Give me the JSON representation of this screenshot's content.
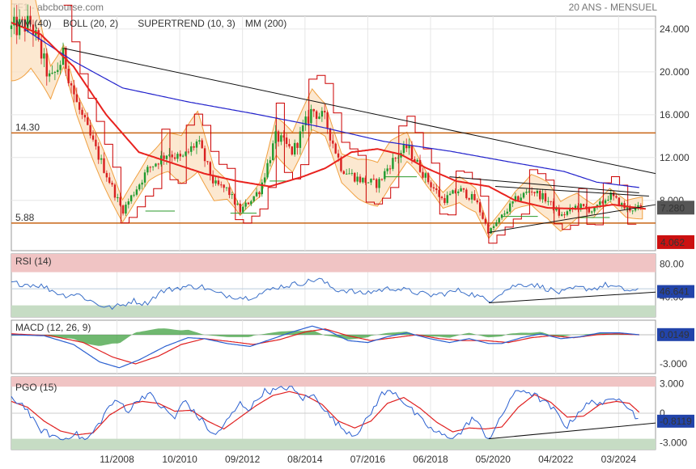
{
  "header": {
    "left": "TF1 - abcbourse.com",
    "right": "20 ANS - MENSUEL"
  },
  "colors": {
    "mm40": "#e8221e",
    "boll": "#f0a040",
    "boll_fill": "#fbe0c0",
    "supertrend": "#cc0000",
    "supertrend_green": "#2a9a2a",
    "mm200": "#2222cc",
    "candle_up": "#1f9a2f",
    "candle_down": "#d82020",
    "hline": "#c86414",
    "rsi": "#3a6fc8",
    "macd_main": "#2a5fd0",
    "macd_signal": "#e02020",
    "macd_hist": "#40a040",
    "pgo_main": "#2a5fd0",
    "pgo_signal": "#e02020",
    "zone_red": "#f0c4c4",
    "zone_green": "#c6dcc4"
  },
  "chart_data": [
    {
      "type": "candlestick",
      "panel": "price",
      "legend": [
        {
          "label": "MM (40)",
          "color": "#e8221e"
        },
        {
          "label": "BOLL (20, 2)",
          "color": "#f0a040"
        },
        {
          "label": "SUPERTREND (10, 3)",
          "color": "#cc0000"
        },
        {
          "label": "MM (200)",
          "color": "#2222cc"
        }
      ],
      "y_ticks": [
        "24.000",
        "20.000",
        "16.000",
        "12.000",
        "8.000"
      ],
      "ylim": [
        3.3,
        25.2
      ],
      "hlines": [
        {
          "value": 14.3,
          "label": "14.30"
        },
        {
          "value": 5.88,
          "label": "5.88"
        }
      ],
      "last_price": "7.280",
      "marker_value": "4.062",
      "x_ticks": [
        "11/2008",
        "10/2010",
        "09/2012",
        "08/2014",
        "07/2016",
        "06/2018",
        "05/2020",
        "04/2022",
        "03/2024"
      ],
      "x_tick_years": [
        2008.83,
        2010.75,
        2012.67,
        2014.58,
        2016.5,
        2018.42,
        2020.33,
        2022.25,
        2024.17
      ],
      "xlim": [
        2005.6,
        2025.3
      ],
      "close_anchors": [
        [
          2005.6,
          24.0
        ],
        [
          2006.2,
          24.5
        ],
        [
          2006.8,
          19.0
        ],
        [
          2007.2,
          21.5
        ],
        [
          2007.6,
          17.0
        ],
        [
          2008.0,
          14.0
        ],
        [
          2008.5,
          10.5
        ],
        [
          2009.0,
          7.0
        ],
        [
          2009.3,
          8.5
        ],
        [
          2009.8,
          11.0
        ],
        [
          2010.4,
          12.5
        ],
        [
          2010.8,
          11.8
        ],
        [
          2011.3,
          13.5
        ],
        [
          2011.8,
          9.5
        ],
        [
          2012.2,
          9.0
        ],
        [
          2012.6,
          7.0
        ],
        [
          2013.2,
          9.0
        ],
        [
          2013.7,
          14.0
        ],
        [
          2014.2,
          12.5
        ],
        [
          2014.8,
          16.5
        ],
        [
          2015.2,
          15.5
        ],
        [
          2015.7,
          11.0
        ],
        [
          2016.2,
          10.0
        ],
        [
          2016.8,
          9.5
        ],
        [
          2017.2,
          11.5
        ],
        [
          2017.7,
          13.0
        ],
        [
          2018.3,
          10.0
        ],
        [
          2018.8,
          8.0
        ],
        [
          2019.3,
          9.0
        ],
        [
          2019.8,
          8.0
        ],
        [
          2020.2,
          5.0
        ],
        [
          2020.6,
          6.5
        ],
        [
          2021.0,
          8.0
        ],
        [
          2021.5,
          9.0
        ],
        [
          2022.0,
          8.0
        ],
        [
          2022.4,
          6.5
        ],
        [
          2022.9,
          7.5
        ],
        [
          2023.4,
          7.0
        ],
        [
          2023.9,
          8.5
        ],
        [
          2024.4,
          7.2
        ],
        [
          2025.0,
          7.3
        ]
      ],
      "mm40_anchors": [
        [
          2005.6,
          24.6
        ],
        [
          2006.5,
          23.5
        ],
        [
          2007.5,
          20.5
        ],
        [
          2008.5,
          16.0
        ],
        [
          2009.5,
          12.5
        ],
        [
          2010.5,
          11.5
        ],
        [
          2011.5,
          10.5
        ],
        [
          2012.5,
          9.8
        ],
        [
          2013.5,
          9.3
        ],
        [
          2014.5,
          10.2
        ],
        [
          2015.2,
          11.0
        ],
        [
          2016.0,
          12.5
        ],
        [
          2016.8,
          12.8
        ],
        [
          2017.5,
          12.3
        ],
        [
          2018.3,
          11.0
        ],
        [
          2019.2,
          9.8
        ],
        [
          2020.2,
          9.3
        ],
        [
          2021.0,
          8.0
        ],
        [
          2022.0,
          7.3
        ],
        [
          2023.0,
          7.2
        ],
        [
          2024.0,
          7.6
        ],
        [
          2025.0,
          7.2
        ]
      ],
      "mm200_anchors": [
        [
          2006.0,
          24.0
        ],
        [
          2007.5,
          21.0
        ],
        [
          2009.0,
          18.5
        ],
        [
          2011.0,
          17.2
        ],
        [
          2013.0,
          16.1
        ],
        [
          2015.0,
          14.9
        ],
        [
          2017.0,
          13.5
        ],
        [
          2019.0,
          12.6
        ],
        [
          2021.0,
          11.5
        ],
        [
          2022.5,
          10.7
        ],
        [
          2023.5,
          9.7
        ],
        [
          2024.8,
          9.2
        ]
      ],
      "trendlines": [
        {
          "x": [
            2007.2,
            2025.3
          ],
          "y": [
            22.2,
            10.5
          ]
        },
        {
          "x": [
            2019.0,
            2024.8
          ],
          "y": [
            10.2,
            8.7
          ]
        },
        {
          "x": [
            2020.2,
            2025.3
          ],
          "y": [
            5.0,
            7.6
          ]
        },
        {
          "x": [
            2020.4,
            2025.1
          ],
          "y": [
            9.3,
            8.4
          ]
        }
      ]
    },
    {
      "type": "line",
      "panel": "rsi",
      "legend": [
        {
          "label": "RSI (14)",
          "color": "#3a6fc8"
        }
      ],
      "y_ticks": [
        "80.00",
        "40.00"
      ],
      "ylim": [
        16,
        92
      ],
      "zones": {
        "upper": 70,
        "lower": 30
      },
      "last_value": "46.641",
      "series_anchors": [
        [
          2005.6,
          57
        ],
        [
          2006.5,
          54
        ],
        [
          2007.2,
          42
        ],
        [
          2007.6,
          44
        ],
        [
          2008.2,
          32
        ],
        [
          2008.6,
          27
        ],
        [
          2009.0,
          30
        ],
        [
          2009.3,
          36
        ],
        [
          2009.7,
          32
        ],
        [
          2010.2,
          47
        ],
        [
          2010.8,
          52
        ],
        [
          2011.4,
          53
        ],
        [
          2011.9,
          44
        ],
        [
          2012.4,
          41
        ],
        [
          2012.8,
          39
        ],
        [
          2013.3,
          45
        ],
        [
          2013.7,
          52
        ],
        [
          2014.2,
          55
        ],
        [
          2014.6,
          58
        ],
        [
          2015.0,
          62
        ],
        [
          2015.5,
          49
        ],
        [
          2015.9,
          48
        ],
        [
          2016.3,
          44
        ],
        [
          2016.8,
          48
        ],
        [
          2017.3,
          51
        ],
        [
          2017.8,
          47
        ],
        [
          2018.4,
          42
        ],
        [
          2018.8,
          44
        ],
        [
          2019.3,
          48
        ],
        [
          2019.8,
          42
        ],
        [
          2020.2,
          35
        ],
        [
          2020.5,
          44
        ],
        [
          2021.0,
          54
        ],
        [
          2021.5,
          56
        ],
        [
          2022.0,
          50
        ],
        [
          2022.4,
          45
        ],
        [
          2022.9,
          51
        ],
        [
          2023.4,
          50
        ],
        [
          2023.8,
          55
        ],
        [
          2024.3,
          49
        ],
        [
          2024.8,
          47
        ]
      ],
      "trendline": {
        "x": [
          2020.2,
          2025.3
        ],
        "y": [
          33,
          46
        ]
      }
    },
    {
      "type": "line",
      "panel": "macd",
      "legend": [
        {
          "label": "MACD (12, 26, 9)",
          "color": "#2a5fd0"
        }
      ],
      "y_ticks": [
        "-3.000"
      ],
      "ylim": [
        -4.0,
        1.5
      ],
      "last_value": "0.0149",
      "main_anchors": [
        [
          2005.6,
          0.0
        ],
        [
          2006.6,
          -0.1
        ],
        [
          2007.5,
          -1.0
        ],
        [
          2008.3,
          -2.8
        ],
        [
          2008.9,
          -3.4
        ],
        [
          2009.5,
          -2.6
        ],
        [
          2010.3,
          -1.2
        ],
        [
          2011.0,
          -0.3
        ],
        [
          2011.5,
          -0.4
        ],
        [
          2012.2,
          -0.9
        ],
        [
          2012.9,
          -1.2
        ],
        [
          2013.6,
          -0.4
        ],
        [
          2014.2,
          0.3
        ],
        [
          2014.8,
          0.9
        ],
        [
          2015.3,
          0.4
        ],
        [
          2015.9,
          -0.6
        ],
        [
          2016.5,
          -0.8
        ],
        [
          2017.1,
          -0.2
        ],
        [
          2017.7,
          0.2
        ],
        [
          2018.4,
          -0.4
        ],
        [
          2019.0,
          -0.8
        ],
        [
          2019.6,
          -0.4
        ],
        [
          2020.2,
          -0.9
        ],
        [
          2020.6,
          -0.9
        ],
        [
          2021.2,
          -0.3
        ],
        [
          2021.8,
          0.1
        ],
        [
          2022.4,
          -0.4
        ],
        [
          2023.0,
          -0.2
        ],
        [
          2023.6,
          0.2
        ],
        [
          2024.2,
          0.2
        ],
        [
          2024.8,
          0.0
        ]
      ],
      "signal_anchors": [
        [
          2005.6,
          0.1
        ],
        [
          2006.8,
          -0.1
        ],
        [
          2007.8,
          -0.8
        ],
        [
          2008.7,
          -2.3
        ],
        [
          2009.4,
          -3.0
        ],
        [
          2010.1,
          -2.2
        ],
        [
          2010.8,
          -1.0
        ],
        [
          2011.5,
          -0.4
        ],
        [
          2012.3,
          -0.7
        ],
        [
          2013.0,
          -1.0
        ],
        [
          2013.8,
          -0.5
        ],
        [
          2014.6,
          0.3
        ],
        [
          2015.2,
          0.6
        ],
        [
          2015.9,
          -0.1
        ],
        [
          2016.6,
          -0.6
        ],
        [
          2017.3,
          -0.3
        ],
        [
          2018.0,
          0.0
        ],
        [
          2018.7,
          -0.4
        ],
        [
          2019.4,
          -0.6
        ],
        [
          2020.1,
          -0.6
        ],
        [
          2020.8,
          -0.8
        ],
        [
          2021.5,
          -0.3
        ],
        [
          2022.1,
          -0.1
        ],
        [
          2022.8,
          -0.3
        ],
        [
          2023.5,
          0.0
        ],
        [
          2024.1,
          0.1
        ],
        [
          2024.8,
          0.0
        ]
      ]
    },
    {
      "type": "line",
      "panel": "pgo",
      "legend": [
        {
          "label": "PGO (15)",
          "color": "#2a5fd0"
        }
      ],
      "y_ticks": [
        "3.000",
        "0",
        "-3.000"
      ],
      "ylim": [
        -3.7,
        3.7
      ],
      "zones": {
        "upper": 2.7,
        "lower": -2.6
      },
      "last_value": "-0.8119",
      "main_anchors": [
        [
          2005.6,
          1.5
        ],
        [
          2006.0,
          0.8
        ],
        [
          2006.4,
          -1.5
        ],
        [
          2006.8,
          -2.2
        ],
        [
          2007.2,
          -2.7
        ],
        [
          2007.5,
          -2.0
        ],
        [
          2007.9,
          -2.8
        ],
        [
          2008.3,
          -1.0
        ],
        [
          2008.6,
          0.8
        ],
        [
          2008.9,
          1.2
        ],
        [
          2009.2,
          0.2
        ],
        [
          2009.5,
          1.5
        ],
        [
          2009.8,
          2.0
        ],
        [
          2010.2,
          0.6
        ],
        [
          2010.6,
          -0.5
        ],
        [
          2010.9,
          1.4
        ],
        [
          2011.2,
          0.0
        ],
        [
          2011.5,
          -1.0
        ],
        [
          2011.8,
          -2.4
        ],
        [
          2012.2,
          -0.8
        ],
        [
          2012.6,
          1.0
        ],
        [
          2012.9,
          0.4
        ],
        [
          2013.3,
          2.2
        ],
        [
          2013.7,
          2.3
        ],
        [
          2014.1,
          2.7
        ],
        [
          2014.5,
          1.5
        ],
        [
          2014.9,
          1.8
        ],
        [
          2015.3,
          -0.2
        ],
        [
          2015.7,
          -1.5
        ],
        [
          2016.1,
          -2.2
        ],
        [
          2016.5,
          -0.6
        ],
        [
          2016.9,
          1.9
        ],
        [
          2017.3,
          2.3
        ],
        [
          2017.7,
          0.8
        ],
        [
          2018.1,
          -0.6
        ],
        [
          2018.5,
          -1.8
        ],
        [
          2018.9,
          -2.4
        ],
        [
          2019.3,
          -2.2
        ],
        [
          2019.7,
          -0.4
        ],
        [
          2020.2,
          -2.6
        ],
        [
          2020.5,
          -1.0
        ],
        [
          2020.9,
          1.8
        ],
        [
          2021.3,
          2.4
        ],
        [
          2021.8,
          1.4
        ],
        [
          2022.2,
          0.3
        ],
        [
          2022.6,
          -1.4
        ],
        [
          2023.0,
          0.4
        ],
        [
          2023.4,
          1.2
        ],
        [
          2023.8,
          1.0
        ],
        [
          2024.2,
          1.8
        ],
        [
          2024.5,
          0.5
        ],
        [
          2024.8,
          -0.8
        ]
      ],
      "signal_anchors": [
        [
          2005.6,
          1.2
        ],
        [
          2006.1,
          0.6
        ],
        [
          2006.6,
          -0.8
        ],
        [
          2007.1,
          -1.8
        ],
        [
          2007.6,
          -2.2
        ],
        [
          2008.1,
          -2.0
        ],
        [
          2008.6,
          -0.2
        ],
        [
          2009.1,
          0.8
        ],
        [
          2009.6,
          1.2
        ],
        [
          2010.1,
          1.0
        ],
        [
          2010.6,
          0.2
        ],
        [
          2011.1,
          0.3
        ],
        [
          2011.6,
          -0.8
        ],
        [
          2012.1,
          -1.6
        ],
        [
          2012.6,
          -0.4
        ],
        [
          2013.1,
          0.8
        ],
        [
          2013.6,
          1.8
        ],
        [
          2014.1,
          2.2
        ],
        [
          2014.6,
          1.8
        ],
        [
          2015.1,
          0.9
        ],
        [
          2015.6,
          -0.8
        ],
        [
          2016.1,
          -1.5
        ],
        [
          2016.6,
          -0.8
        ],
        [
          2017.1,
          1.0
        ],
        [
          2017.6,
          1.6
        ],
        [
          2018.1,
          0.5
        ],
        [
          2018.6,
          -0.9
        ],
        [
          2019.1,
          -1.9
        ],
        [
          2019.6,
          -1.5
        ],
        [
          2020.1,
          -1.6
        ],
        [
          2020.6,
          -1.4
        ],
        [
          2021.1,
          0.6
        ],
        [
          2021.6,
          1.9
        ],
        [
          2022.1,
          1.1
        ],
        [
          2022.6,
          -0.4
        ],
        [
          2023.1,
          -0.3
        ],
        [
          2023.6,
          0.9
        ],
        [
          2024.1,
          1.2
        ],
        [
          2024.5,
          1.0
        ],
        [
          2024.8,
          0.1
        ]
      ],
      "trendline": {
        "x": [
          2020.2,
          2025.3
        ],
        "y": [
          -2.6,
          -1.0
        ]
      }
    }
  ]
}
